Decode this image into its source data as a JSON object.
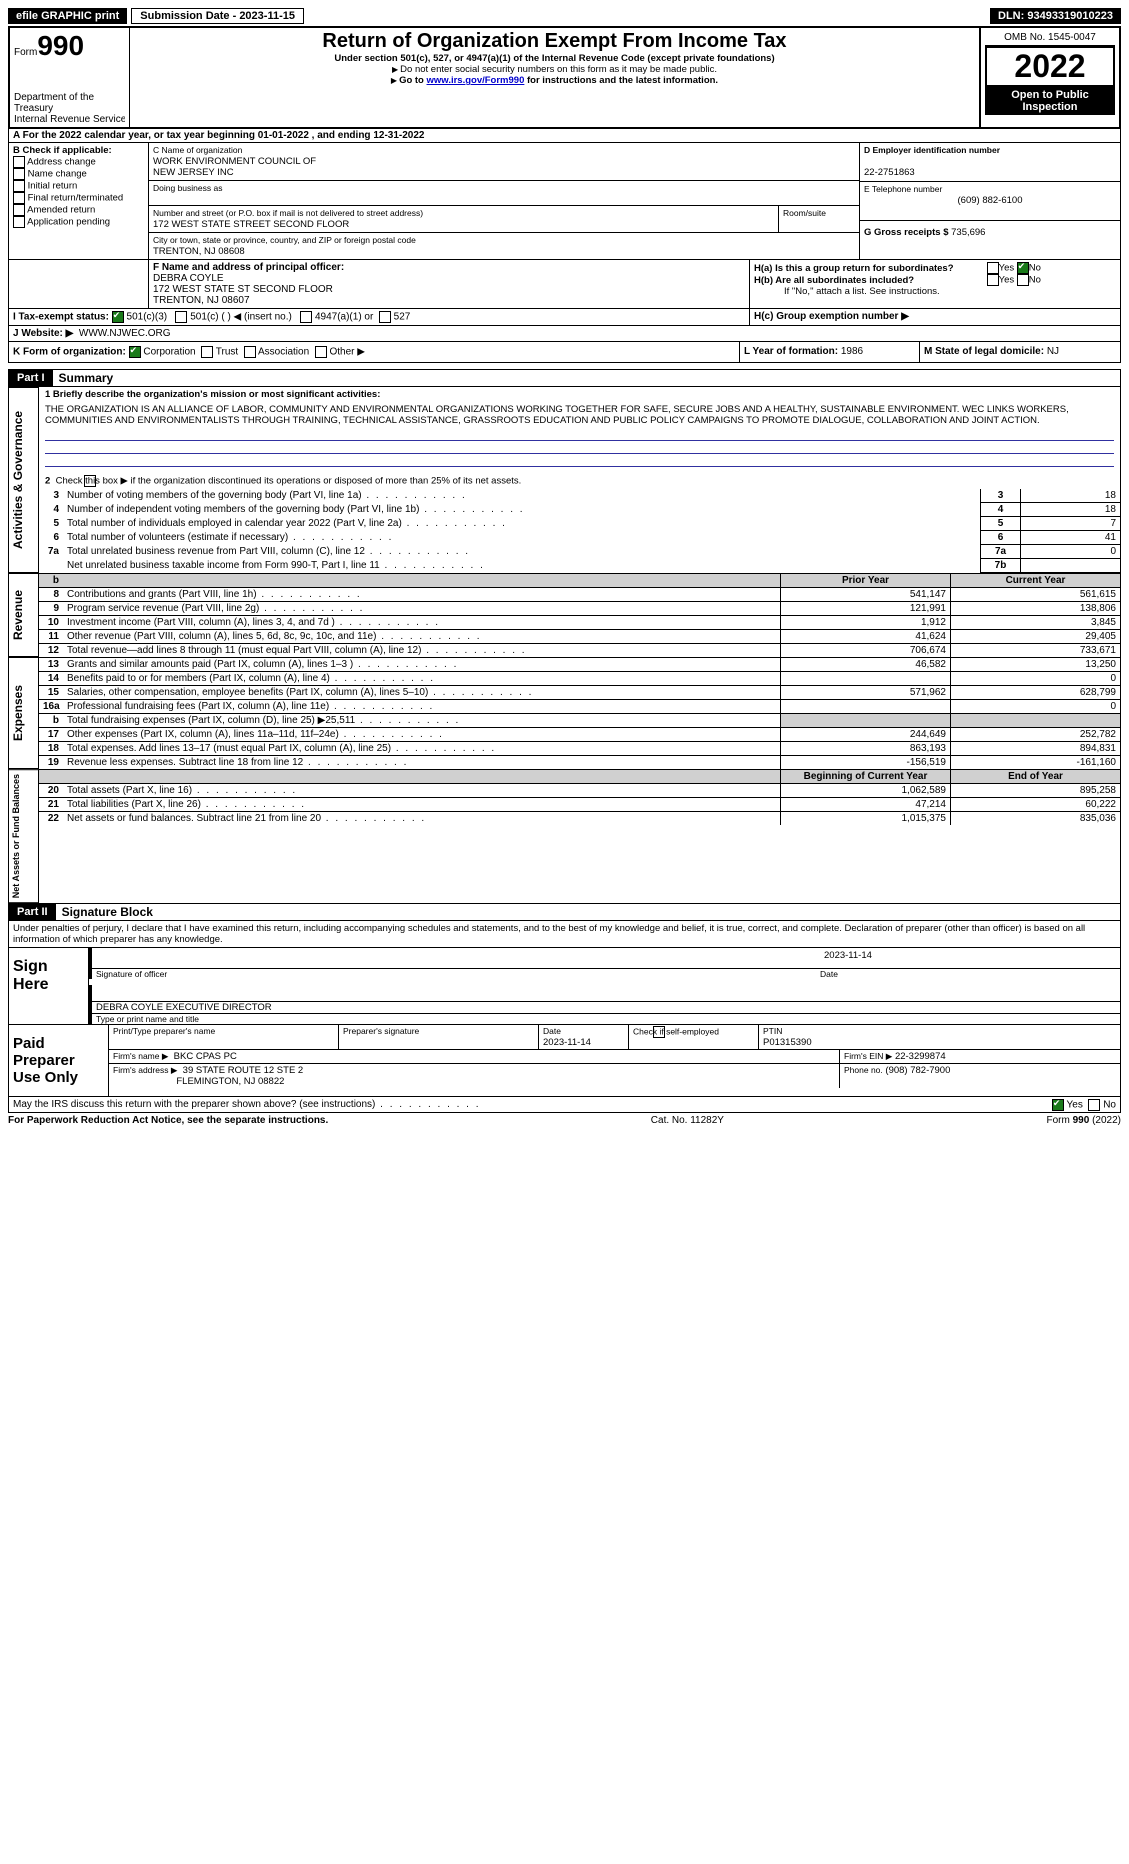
{
  "topbar": {
    "efile": "efile GRAPHIC print",
    "sub_label": "Submission Date - 2023-11-15",
    "dln_label": "DLN: 93493319010223"
  },
  "header": {
    "form_word": "Form",
    "form_no": "990",
    "dept": "Department of the Treasury",
    "irs": "Internal Revenue Service",
    "title": "Return of Organization Exempt From Income Tax",
    "subtitle": "Under section 501(c), 527, or 4947(a)(1) of the Internal Revenue Code (except private foundations)",
    "line1": "Do not enter social security numbers on this form as it may be made public.",
    "line2_pre": "Go to ",
    "line2_link": "www.irs.gov/Form990",
    "line2_post": " for instructions and the latest information.",
    "omb": "OMB No. 1545-0047",
    "year": "2022",
    "open": "Open to Public Inspection"
  },
  "rowA": "A For the 2022 calendar year, or tax year beginning 01-01-2022    , and ending 12-31-2022",
  "boxB": {
    "label": "B Check if applicable:",
    "items": [
      "Address change",
      "Name change",
      "Initial return",
      "Final return/terminated",
      "Amended return",
      "Application pending"
    ]
  },
  "boxC": {
    "label": "C Name of organization",
    "name1": "WORK ENVIRONMENT COUNCIL OF",
    "name2": "NEW JERSEY INC",
    "dba_label": "Doing business as",
    "street_label": "Number and street (or P.O. box if mail is not delivered to street address)",
    "room_label": "Room/suite",
    "street": "172 WEST STATE STREET SECOND FLOOR",
    "city_label": "City or town, state or province, country, and ZIP or foreign postal code",
    "city": "TRENTON, NJ  08608"
  },
  "boxD": {
    "label": "D Employer identification number",
    "value": "22-2751863"
  },
  "boxE": {
    "label": "E Telephone number",
    "value": "(609) 882-6100"
  },
  "boxG": {
    "label": "G Gross receipts $",
    "value": "735,696"
  },
  "boxF": {
    "label": "F  Name and address of principal officer:",
    "name": "DEBRA COYLE",
    "addr1": "172 WEST STATE ST SECOND FLOOR",
    "addr2": "TRENTON, NJ  08607"
  },
  "boxH": {
    "ha": "H(a)  Is this a group return for subordinates?",
    "hb": "H(b)  Are all subordinates included?",
    "hb_note": "If \"No,\" attach a list. See instructions.",
    "hc": "H(c)  Group exemption number ▶",
    "yes": "Yes",
    "no": "No"
  },
  "boxI": {
    "label": "I   Tax-exempt status:",
    "o1": "501(c)(3)",
    "o2": "501(c) (  ) ◀ (insert no.)",
    "o3": "4947(a)(1) or",
    "o4": "527"
  },
  "boxJ": {
    "label": "J   Website: ▶",
    "value": "WWW.NJWEC.ORG"
  },
  "boxK": {
    "label": "K Form of organization:",
    "o1": "Corporation",
    "o2": "Trust",
    "o3": "Association",
    "o4": "Other ▶"
  },
  "boxL": {
    "label": "L Year of formation:",
    "value": "1986"
  },
  "boxM": {
    "label": "M State of legal domicile:",
    "value": "NJ"
  },
  "part1": {
    "tag": "Part I",
    "title": "Summary"
  },
  "mission": {
    "lead": "1  Briefly describe the organization's mission or most significant activities:",
    "text": "THE ORGANIZATION IS AN ALLIANCE OF LABOR, COMMUNITY AND ENVIRONMENTAL ORGANIZATIONS WORKING TOGETHER FOR SAFE, SECURE JOBS AND A HEALTHY, SUSTAINABLE ENVIRONMENT. WEC LINKS WORKERS, COMMUNITIES AND ENVIRONMENTALISTS THROUGH TRAINING, TECHNICAL ASSISTANCE, GRASSROOTS EDUCATION AND PUBLIC POLICY CAMPAIGNS TO PROMOTE DIALOGUE, COLLABORATION AND JOINT ACTION."
  },
  "line2": "Check this box ▶      if the organization discontinued its operations or disposed of more than 25% of its net assets.",
  "govLines": [
    {
      "n": "3",
      "t": "Number of voting members of the governing body (Part VI, line 1a)",
      "bn": "3",
      "v": "18"
    },
    {
      "n": "4",
      "t": "Number of independent voting members of the governing body (Part VI, line 1b)",
      "bn": "4",
      "v": "18"
    },
    {
      "n": "5",
      "t": "Total number of individuals employed in calendar year 2022 (Part V, line 2a)",
      "bn": "5",
      "v": "7"
    },
    {
      "n": "6",
      "t": "Total number of volunteers (estimate if necessary)",
      "bn": "6",
      "v": "41"
    },
    {
      "n": "7a",
      "t": "Total unrelated business revenue from Part VIII, column (C), line 12",
      "bn": "7a",
      "v": "0"
    },
    {
      "n": "",
      "t": "Net unrelated business taxable income from Form 990-T, Part I, line 11",
      "bn": "7b",
      "v": ""
    }
  ],
  "colHdr": {
    "prior": "Prior Year",
    "current": "Current Year"
  },
  "tabs": {
    "gov": "Activities & Governance",
    "rev": "Revenue",
    "exp": "Expenses",
    "net": "Net Assets or Fund Balances"
  },
  "revLines": [
    {
      "n": "8",
      "t": "Contributions and grants (Part VIII, line 1h)",
      "p": "541,147",
      "c": "561,615"
    },
    {
      "n": "9",
      "t": "Program service revenue (Part VIII, line 2g)",
      "p": "121,991",
      "c": "138,806"
    },
    {
      "n": "10",
      "t": "Investment income (Part VIII, column (A), lines 3, 4, and 7d )",
      "p": "1,912",
      "c": "3,845"
    },
    {
      "n": "11",
      "t": "Other revenue (Part VIII, column (A), lines 5, 6d, 8c, 9c, 10c, and 11e)",
      "p": "41,624",
      "c": "29,405"
    },
    {
      "n": "12",
      "t": "Total revenue—add lines 8 through 11 (must equal Part VIII, column (A), line 12)",
      "p": "706,674",
      "c": "733,671"
    }
  ],
  "expLines": [
    {
      "n": "13",
      "t": "Grants and similar amounts paid (Part IX, column (A), lines 1–3 )",
      "p": "46,582",
      "c": "13,250"
    },
    {
      "n": "14",
      "t": "Benefits paid to or for members (Part IX, column (A), line 4)",
      "p": "",
      "c": "0"
    },
    {
      "n": "15",
      "t": "Salaries, other compensation, employee benefits (Part IX, column (A), lines 5–10)",
      "p": "571,962",
      "c": "628,799"
    },
    {
      "n": "16a",
      "t": "Professional fundraising fees (Part IX, column (A), line 11e)",
      "p": "",
      "c": "0"
    },
    {
      "n": "b",
      "t": "Total fundraising expenses (Part IX, column (D), line 25) ▶25,511",
      "p": "gray",
      "c": "gray"
    },
    {
      "n": "17",
      "t": "Other expenses (Part IX, column (A), lines 11a–11d, 11f–24e)",
      "p": "244,649",
      "c": "252,782"
    },
    {
      "n": "18",
      "t": "Total expenses. Add lines 13–17 (must equal Part IX, column (A), line 25)",
      "p": "863,193",
      "c": "894,831"
    },
    {
      "n": "19",
      "t": "Revenue less expenses. Subtract line 18 from line 12",
      "p": "-156,519",
      "c": "-161,160"
    }
  ],
  "netHdr": {
    "begin": "Beginning of Current Year",
    "end": "End of Year"
  },
  "netLines": [
    {
      "n": "20",
      "t": "Total assets (Part X, line 16)",
      "p": "1,062,589",
      "c": "895,258"
    },
    {
      "n": "21",
      "t": "Total liabilities (Part X, line 26)",
      "p": "47,214",
      "c": "60,222"
    },
    {
      "n": "22",
      "t": "Net assets or fund balances. Subtract line 21 from line 20",
      "p": "1,015,375",
      "c": "835,036"
    }
  ],
  "part2": {
    "tag": "Part II",
    "title": "Signature Block"
  },
  "sig": {
    "decl": "Under penalties of perjury, I declare that I have examined this return, including accompanying schedules and statements, and to the best of my knowledge and belief, it is true, correct, and complete. Declaration of preparer (other than officer) is based on all information of which preparer has any knowledge.",
    "sign_here": "Sign Here",
    "sig_officer": "Signature of officer",
    "date": "Date",
    "date_v": "2023-11-14",
    "name": "DEBRA COYLE  EXECUTIVE DIRECTOR",
    "name_lbl": "Type or print name and title"
  },
  "prep": {
    "title": "Paid Preparer Use Only",
    "h1": "Print/Type preparer's name",
    "h2": "Preparer's signature",
    "h3_l": "Date",
    "h3": "2023-11-14",
    "h4": "Check       if self-employed",
    "h5_l": "PTIN",
    "h5": "P01315390",
    "firm_l": "Firm's name    ▶",
    "firm": "BKC CPAS PC",
    "ein_l": "Firm's EIN ▶",
    "ein": "22-3299874",
    "addr_l": "Firm's address ▶",
    "addr1": "39 STATE ROUTE 12 STE 2",
    "addr2": "FLEMINGTON, NJ  08822",
    "phone_l": "Phone no.",
    "phone": "(908) 782-7900"
  },
  "discuss": "May the IRS discuss this return with the preparer shown above? (see instructions)",
  "footer": {
    "l": "For Paperwork Reduction Act Notice, see the separate instructions.",
    "c": "Cat. No. 11282Y",
    "r": "Form 990 (2022)"
  }
}
